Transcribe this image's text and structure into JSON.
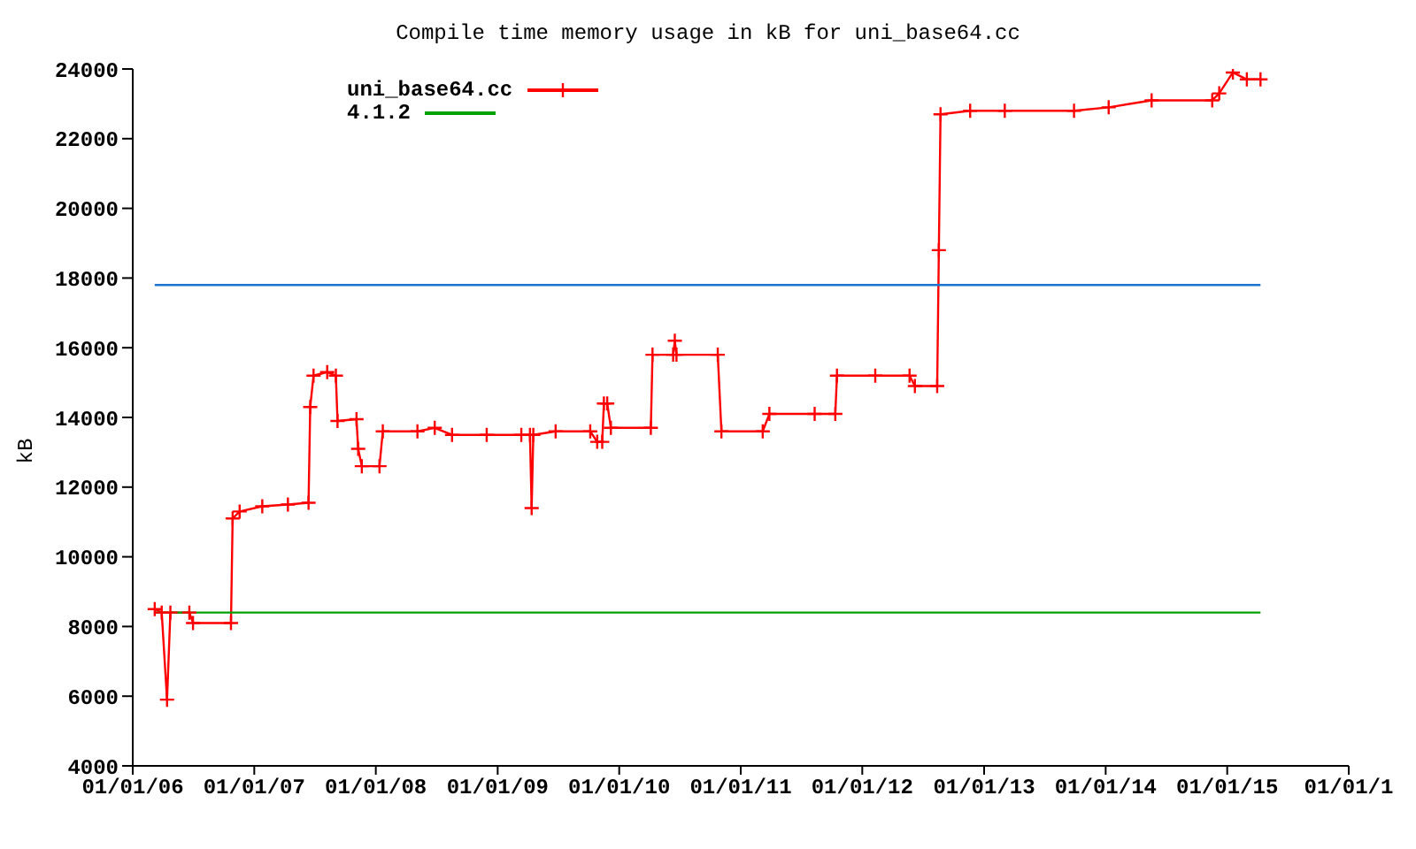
{
  "chart_data": {
    "type": "line",
    "title": "Compile time memory usage in kB for uni_base64.cc",
    "ylabel": "kB",
    "legend": "top left",
    "marker": "cross",
    "line_style": "solid",
    "xlim": [
      "2006-01-01",
      "2016-01-01"
    ],
    "ylim": [
      4000,
      24000
    ],
    "yticks": [
      4000,
      6000,
      8000,
      10000,
      12000,
      14000,
      16000,
      18000,
      20000,
      22000,
      24000
    ],
    "xticks": [
      {
        "value": "2006-01-01",
        "label": "01/01/06"
      },
      {
        "value": "2007-01-01",
        "label": "01/01/07"
      },
      {
        "value": "2008-01-01",
        "label": "01/01/08"
      },
      {
        "value": "2009-01-01",
        "label": "01/01/09"
      },
      {
        "value": "2010-01-01",
        "label": "01/01/10"
      },
      {
        "value": "2011-01-01",
        "label": "01/01/11"
      },
      {
        "value": "2012-01-01",
        "label": "01/01/12"
      },
      {
        "value": "2013-01-01",
        "label": "01/01/13"
      },
      {
        "value": "2014-01-01",
        "label": "01/01/14"
      },
      {
        "value": "2015-01-01",
        "label": "01/01/15"
      },
      {
        "value": "2016-01-01",
        "label": "01/01/1"
      }
    ],
    "series": [
      {
        "name": "uni_base64.cc",
        "color": "#ff0000",
        "x": [
          "2006-03-08",
          "2006-03-29",
          "2006-04-14",
          "2006-04-24",
          "2006-06-20",
          "2006-07-01",
          "2006-10-23",
          "2006-10-28",
          "2006-11-18",
          "2007-01-25",
          "2007-04-12",
          "2007-06-13",
          "2007-06-18",
          "2007-06-28",
          "2007-08-08",
          "2007-09-03",
          "2007-09-08",
          "2007-11-04",
          "2007-11-09",
          "2007-11-20",
          "2008-01-12",
          "2008-01-22",
          "2008-05-05",
          "2008-06-26",
          "2008-08-17",
          "2008-11-29",
          "2009-03-13",
          "2009-04-08",
          "2009-04-13",
          "2009-04-18",
          "2009-06-24",
          "2009-10-06",
          "2009-10-27",
          "2009-11-11",
          "2009-11-16",
          "2009-11-26",
          "2009-12-07",
          "2010-04-06",
          "2010-04-11",
          "2010-06-12",
          "2010-06-17",
          "2010-06-22",
          "2010-10-24",
          "2010-11-04",
          "2011-03-08",
          "2011-03-28",
          "2011-08-11",
          "2011-10-12",
          "2011-10-17",
          "2012-02-09",
          "2012-05-22",
          "2012-06-07",
          "2012-08-13",
          "2012-08-18",
          "2012-08-23",
          "2012-11-20",
          "2013-03-04",
          "2013-09-28",
          "2014-01-10",
          "2014-05-19",
          "2014-11-17",
          "2014-12-08",
          "2015-01-18",
          "2015-03-01",
          "2015-04-11"
        ],
        "values": [
          8500,
          8400,
          5900,
          8400,
          8400,
          8100,
          8100,
          11100,
          11300,
          11450,
          11500,
          11550,
          14300,
          15200,
          15300,
          15200,
          13900,
          13950,
          13100,
          12600,
          12600,
          13600,
          13600,
          13700,
          13500,
          13500,
          13500,
          13500,
          11400,
          13500,
          13600,
          13600,
          13300,
          13300,
          14400,
          14400,
          13700,
          13700,
          15800,
          15800,
          16200,
          15800,
          15800,
          13600,
          13600,
          14100,
          14100,
          14100,
          15200,
          15200,
          15200,
          14900,
          14900,
          18800,
          22700,
          22800,
          22800,
          22800,
          22900,
          23100,
          23100,
          23300,
          23900,
          23700,
          23700
        ]
      },
      {
        "name": "4.1.2",
        "color": "#00a000",
        "marker": "none",
        "x": [
          "2006-03-08",
          "2015-04-11"
        ],
        "values": [
          8400,
          8400
        ]
      },
      {
        "color": "#1874cd",
        "marker": "none",
        "x": [
          "2006-03-08",
          "2015-04-11"
        ],
        "values": [
          17800,
          17800
        ]
      }
    ]
  }
}
